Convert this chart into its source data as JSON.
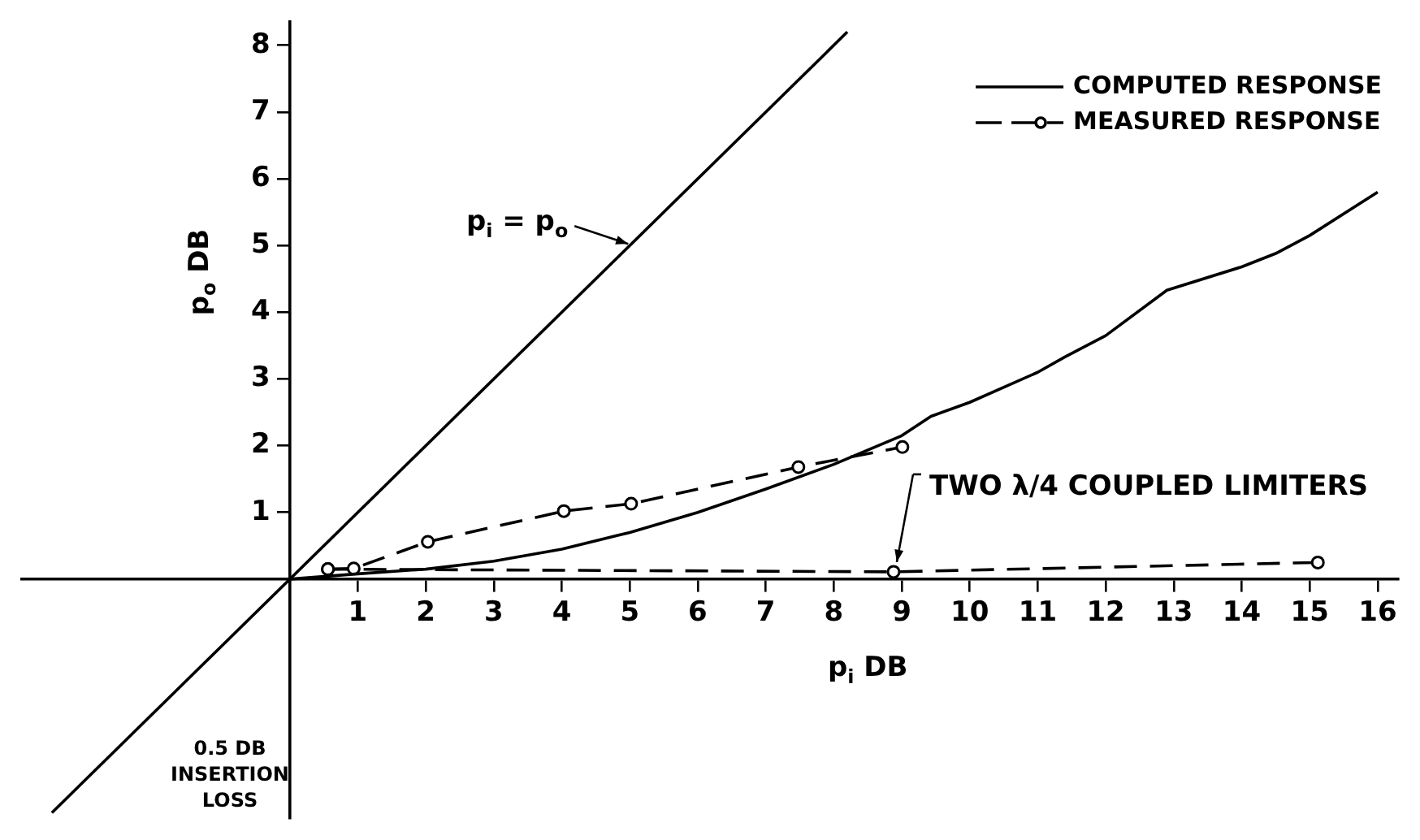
{
  "chart_data": {
    "type": "line",
    "xlabel": "p$_{i}$ DB",
    "ylabel": "p$_{o}$ DB",
    "xlim": [
      -3.94,
      16.3
    ],
    "ylim": [
      -3.58,
      8.35
    ],
    "xticks": [
      1,
      2,
      3,
      4,
      5,
      6,
      7,
      8,
      9,
      10,
      11,
      12,
      13,
      14,
      15,
      16
    ],
    "yticks": [
      1,
      2,
      3,
      4,
      5,
      6,
      7,
      8
    ],
    "grid": false,
    "legend": "top right",
    "series": [
      {
        "color": "#000000",
        "x": [
          -3.5,
          8.2
        ],
        "values": [
          -3.5,
          8.2
        ],
        "line_style": "solid",
        "marker": "none"
      },
      {
        "name": "COMPUTED RESPONSE",
        "color": "#000000",
        "line_style": "solid",
        "marker": "none",
        "x": [
          0,
          1,
          2,
          3,
          4,
          5,
          6,
          7,
          8,
          9,
          9.43,
          10,
          11,
          11.4,
          12,
          12.9,
          14,
          14.5,
          15,
          16
        ],
        "values": [
          0,
          0.08,
          0.15,
          0.27,
          0.45,
          0.7,
          1.0,
          1.35,
          1.72,
          2.15,
          2.44,
          2.65,
          3.1,
          3.33,
          3.65,
          4.33,
          4.68,
          4.88,
          5.15,
          5.8
        ]
      },
      {
        "name": "MEASURED RESPONSE",
        "color": "#000000",
        "line_style": "dashed",
        "marker": "circle",
        "x": [
          0.56,
          0.94,
          2.03,
          4.03,
          5.02,
          7.48,
          9.01
        ],
        "values": [
          0.15,
          0.16,
          0.56,
          1.02,
          1.13,
          1.68,
          1.98
        ]
      },
      {
        "color": "#000000",
        "line_style": "dashed",
        "marker": "circle",
        "x": [
          0.56,
          8.88,
          15.12
        ],
        "values": [
          0.15,
          0.11,
          0.25
        ]
      }
    ],
    "annotations": [
      {
        "text": "p$_{i}$ = p$_{o}$",
        "x": 5,
        "y": 5
      },
      {
        "text": "TWO λ/4 COUPLED LIMITERS",
        "x": 8.88,
        "y": 0.11
      },
      "0.5 DB INSERTION LOSS"
    ]
  }
}
